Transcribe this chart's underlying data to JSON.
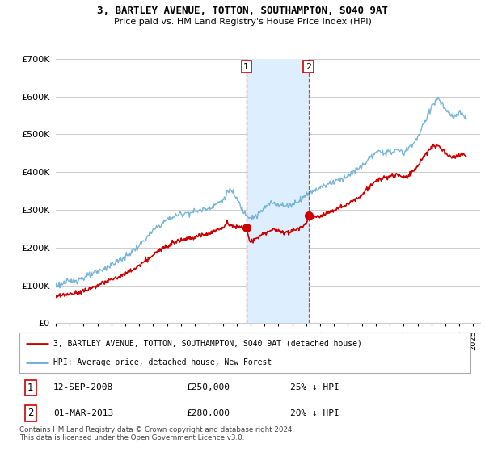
{
  "title": "3, BARTLEY AVENUE, TOTTON, SOUTHAMPTON, SO40 9AT",
  "subtitle": "Price paid vs. HM Land Registry's House Price Index (HPI)",
  "legend_line1": "3, BARTLEY AVENUE, TOTTON, SOUTHAMPTON, SO40 9AT (detached house)",
  "legend_line2": "HPI: Average price, detached house, New Forest",
  "footnote": "Contains HM Land Registry data © Crown copyright and database right 2024.\nThis data is licensed under the Open Government Licence v3.0.",
  "transaction1_label": "1",
  "transaction1_date": "12-SEP-2008",
  "transaction1_price": "£250,000",
  "transaction1_hpi": "25% ↓ HPI",
  "transaction2_label": "2",
  "transaction2_date": "01-MAR-2013",
  "transaction2_price": "£280,000",
  "transaction2_hpi": "20% ↓ HPI",
  "red_color": "#cc0000",
  "blue_color": "#6baed6",
  "shade_color": "#ddeeff",
  "background_color": "#ffffff",
  "grid_color": "#cccccc",
  "ylim": [
    0,
    700000
  ],
  "yticks": [
    0,
    100000,
    200000,
    300000,
    400000,
    500000,
    600000,
    700000
  ],
  "ytick_labels": [
    "£0",
    "£100K",
    "£200K",
    "£300K",
    "£400K",
    "£500K",
    "£600K",
    "£700K"
  ],
  "xlim_start": 1995.0,
  "xlim_end": 2025.5,
  "transaction1_x": 2008.7,
  "transaction2_x": 2013.17
}
